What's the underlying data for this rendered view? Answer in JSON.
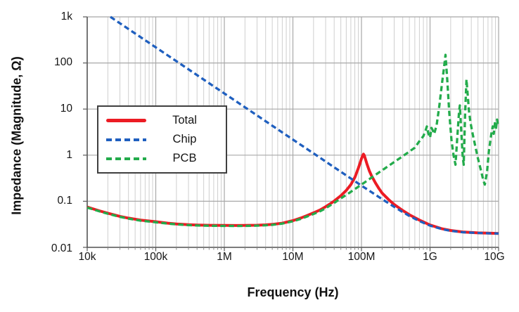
{
  "chart_data": {
    "type": "line",
    "title": "",
    "xlabel": "Frequency (Hz)",
    "ylabel": "Impedance (Magnitude, Ω)",
    "x_scale": "log",
    "y_scale": "log",
    "xlim": [
      10000,
      10000000000
    ],
    "ylim": [
      0.01,
      1000
    ],
    "grid": "log: major decades both axes, minor verticals only",
    "legend_position": "inside center-left",
    "x_ticks": {
      "values": [
        10000,
        100000,
        1000000,
        10000000,
        100000000,
        1000000000,
        10000000000
      ],
      "labels": [
        "10k",
        "100k",
        "1M",
        "10M",
        "100M",
        "1G",
        "10G"
      ]
    },
    "y_ticks": {
      "values": [
        1000,
        100,
        10,
        1,
        0.1,
        0.01
      ],
      "labels": [
        "1k",
        "100",
        "10",
        "1",
        "0.1",
        "0.01"
      ]
    },
    "series": [
      {
        "name": "Total",
        "color": "#ec1c24",
        "style": "solid",
        "width": 4,
        "points": [
          [
            10000,
            0.075
          ],
          [
            15000,
            0.062
          ],
          [
            20000,
            0.055
          ],
          [
            30000,
            0.047
          ],
          [
            40000,
            0.043
          ],
          [
            60000,
            0.039
          ],
          [
            100000,
            0.036
          ],
          [
            150000,
            0.0335
          ],
          [
            200000,
            0.0322
          ],
          [
            300000,
            0.031
          ],
          [
            400000,
            0.0305
          ],
          [
            600000,
            0.0301
          ],
          [
            1000000,
            0.0299
          ],
          [
            1500000,
            0.0298
          ],
          [
            2000000,
            0.0299
          ],
          [
            3000000,
            0.0302
          ],
          [
            4000000,
            0.0308
          ],
          [
            5000000,
            0.0315
          ],
          [
            7000000,
            0.0335
          ],
          [
            10000000,
            0.038
          ],
          [
            13000000,
            0.0432
          ],
          [
            16000000,
            0.0488
          ],
          [
            20000000,
            0.056
          ],
          [
            25000000,
            0.065
          ],
          [
            30000000,
            0.076
          ],
          [
            35000000,
            0.088
          ],
          [
            40000000,
            0.101
          ],
          [
            50000000,
            0.132
          ],
          [
            60000000,
            0.172
          ],
          [
            70000000,
            0.23
          ],
          [
            80000000,
            0.33
          ],
          [
            90000000,
            0.52
          ],
          [
            95000000,
            0.66
          ],
          [
            100000000,
            0.84
          ],
          [
            104000000,
            0.98
          ],
          [
            107000000,
            1.05
          ],
          [
            110000000,
            0.99
          ],
          [
            115000000,
            0.8
          ],
          [
            120000000,
            0.65
          ],
          [
            130000000,
            0.46
          ],
          [
            140000000,
            0.36
          ],
          [
            160000000,
            0.25
          ],
          [
            180000000,
            0.188
          ],
          [
            200000000,
            0.15
          ],
          [
            250000000,
            0.108
          ],
          [
            300000000,
            0.085
          ],
          [
            400000000,
            0.063
          ],
          [
            500000000,
            0.051
          ],
          [
            700000000,
            0.039
          ],
          [
            1000000000,
            0.0305
          ],
          [
            1500000000,
            0.0253
          ],
          [
            2000000000,
            0.0232
          ],
          [
            3000000000,
            0.0216
          ],
          [
            5000000000,
            0.0206
          ],
          [
            7000000000,
            0.0203
          ],
          [
            10000000000,
            0.02
          ]
        ]
      },
      {
        "name": "Chip",
        "color": "#1f5fbf",
        "style": "dashed",
        "width": 3.3,
        "points": [
          [
            21800,
            1000
          ],
          [
            30000,
            727
          ],
          [
            50000,
            436
          ],
          [
            100000,
            218
          ],
          [
            200000,
            109
          ],
          [
            400000,
            54.5
          ],
          [
            1000000,
            21.8
          ],
          [
            2000000,
            10.9
          ],
          [
            4000000,
            5.45
          ],
          [
            10000000,
            2.18
          ],
          [
            20000000,
            1.09
          ],
          [
            40000000,
            0.545
          ],
          [
            100000000,
            0.219
          ],
          [
            150000000,
            0.147
          ],
          [
            200000000,
            0.111
          ],
          [
            300000000,
            0.0757
          ],
          [
            400000000,
            0.0581
          ],
          [
            500000000,
            0.048
          ],
          [
            700000000,
            0.0371
          ],
          [
            1000000000,
            0.0296
          ],
          [
            1500000000,
            0.0248
          ],
          [
            2000000000,
            0.0228
          ],
          [
            3000000000,
            0.0213
          ],
          [
            5000000000,
            0.0205
          ],
          [
            7000000000,
            0.0202
          ],
          [
            10000000000,
            0.02
          ]
        ]
      },
      {
        "name": "PCB",
        "color": "#23ab4b",
        "style": "dashed",
        "width": 3.3,
        "points": [
          [
            10000,
            0.073
          ],
          [
            15000,
            0.0605
          ],
          [
            20000,
            0.0535
          ],
          [
            30000,
            0.0458
          ],
          [
            40000,
            0.042
          ],
          [
            60000,
            0.038
          ],
          [
            100000,
            0.035
          ],
          [
            150000,
            0.0327
          ],
          [
            200000,
            0.0315
          ],
          [
            300000,
            0.0303
          ],
          [
            400000,
            0.0298
          ],
          [
            600000,
            0.0294
          ],
          [
            1000000,
            0.0292
          ],
          [
            1500000,
            0.0291
          ],
          [
            2000000,
            0.0292
          ],
          [
            3000000,
            0.0296
          ],
          [
            4000000,
            0.0301
          ],
          [
            5000000,
            0.0308
          ],
          [
            7000000,
            0.0327
          ],
          [
            10000000,
            0.0368
          ],
          [
            13000000,
            0.0415
          ],
          [
            16000000,
            0.0465
          ],
          [
            20000000,
            0.053
          ],
          [
            25000000,
            0.061
          ],
          [
            30000000,
            0.0705
          ],
          [
            40000000,
            0.092
          ],
          [
            50000000,
            0.115
          ],
          [
            70000000,
            0.16
          ],
          [
            100000000,
            0.23
          ],
          [
            150000000,
            0.35
          ],
          [
            200000000,
            0.47
          ],
          [
            300000000,
            0.71
          ],
          [
            400000000,
            0.95
          ],
          [
            500000000,
            1.2
          ],
          [
            600000000,
            1.45
          ],
          [
            680000000,
            1.9
          ],
          [
            800000000,
            2.6
          ],
          [
            870000000,
            3.6
          ],
          [
            900000000,
            4.2
          ],
          [
            950000000,
            2.9
          ],
          [
            1000000000,
            2.4
          ],
          [
            1050000000,
            3.9
          ],
          [
            1100000000,
            3.4
          ],
          [
            1150000000,
            2.9
          ],
          [
            1250000000,
            4.5
          ],
          [
            1370000000,
            12
          ],
          [
            1500000000,
            38
          ],
          [
            1600000000,
            80
          ],
          [
            1680000000,
            150
          ],
          [
            1780000000,
            45
          ],
          [
            1900000000,
            9
          ],
          [
            2050000000,
            2.2
          ],
          [
            2200000000,
            1.0
          ],
          [
            2350000000,
            0.62
          ],
          [
            2500000000,
            2.5
          ],
          [
            2650000000,
            9
          ],
          [
            2720000000,
            12
          ],
          [
            2850000000,
            3.5
          ],
          [
            3000000000,
            0.9
          ],
          [
            3100000000,
            0.62
          ],
          [
            3250000000,
            8
          ],
          [
            3400000000,
            44
          ],
          [
            3550000000,
            20
          ],
          [
            3700000000,
            9
          ],
          [
            3900000000,
            5
          ],
          [
            4200000000,
            2.8
          ],
          [
            4600000000,
            1.5
          ],
          [
            5000000000,
            0.85
          ],
          [
            5500000000,
            0.48
          ],
          [
            6000000000,
            0.28
          ],
          [
            6300000000,
            0.23
          ],
          [
            6800000000,
            0.45
          ],
          [
            7200000000,
            1.2
          ],
          [
            7800000000,
            2.8
          ],
          [
            8200000000,
            4.2
          ],
          [
            8500000000,
            2.9
          ],
          [
            8900000000,
            5.5
          ],
          [
            9100000000,
            3.5
          ],
          [
            9500000000,
            5.9
          ],
          [
            9800000000,
            4.6
          ],
          [
            10000000000,
            5.2
          ]
        ]
      }
    ]
  }
}
